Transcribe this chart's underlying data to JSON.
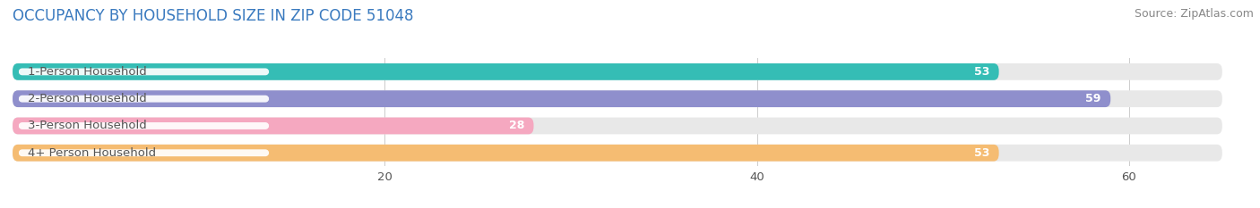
{
  "title": "OCCUPANCY BY HOUSEHOLD SIZE IN ZIP CODE 51048",
  "source": "Source: ZipAtlas.com",
  "categories": [
    "1-Person Household",
    "2-Person Household",
    "3-Person Household",
    "4+ Person Household"
  ],
  "values": [
    53,
    59,
    28,
    53
  ],
  "bar_colors": [
    "#35bdb5",
    "#8f8fcc",
    "#f5a8c0",
    "#f5bc72"
  ],
  "background_bar_color": "#e8e8e8",
  "xlim_max": 65,
  "xticks": [
    20,
    40,
    60
  ],
  "title_fontsize": 12,
  "label_fontsize": 9.5,
  "value_fontsize": 9,
  "source_fontsize": 9,
  "bar_height": 0.62,
  "bar_gap": 0.18,
  "fig_bg": "#ffffff",
  "axes_bg": "#ffffff",
  "label_box_color": "#ffffff",
  "grid_color": "#cccccc",
  "text_color": "#555555",
  "title_color": "#3a7abf"
}
